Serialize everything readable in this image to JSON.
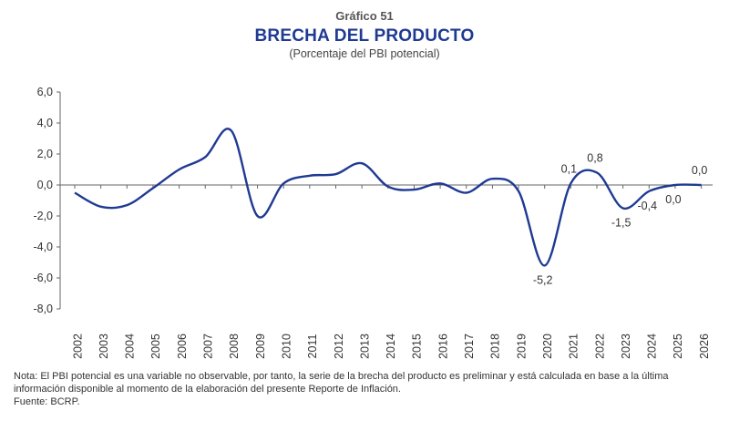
{
  "header": {
    "kicker": "Gráfico 51",
    "title": "BRECHA DEL PRODUCTO",
    "subtitle": "(Porcentaje del PBI potencial)"
  },
  "footer": {
    "note": "Nota: El PBI potencial es una variable no observable, por tanto, la serie de la brecha del producto es preliminar y está calculada en base a la última información disponible al momento de la elaboración del presente Reporte de Inflación.",
    "source": "Fuente: BCRP."
  },
  "colors": {
    "line": "#1f3a93",
    "axis": "#666666",
    "text": "#333333"
  },
  "chart_data": {
    "type": "line",
    "title": "BRECHA DEL PRODUCTO",
    "subtitle": "(Porcentaje del PBI potencial)",
    "xlabel": "",
    "ylabel": "",
    "ylim": [
      -8,
      6
    ],
    "yticks": [
      "6,0",
      "4,0",
      "2,0",
      "0,0",
      "-2,0",
      "-4,0",
      "-6,0",
      "-8,0"
    ],
    "ytick_values": [
      6,
      4,
      2,
      0,
      -2,
      -4,
      -6,
      -8
    ],
    "categories": [
      "2002",
      "2003",
      "2004",
      "2005",
      "2006",
      "2007",
      "2008",
      "2009",
      "2010",
      "2011",
      "2012",
      "2013",
      "2014",
      "2015",
      "2016",
      "2017",
      "2018",
      "2019",
      "2020",
      "2021",
      "2022",
      "2023",
      "2024",
      "2025",
      "2026"
    ],
    "series": [
      {
        "values": [
          -0.5,
          -1.4,
          -1.3,
          -0.2,
          1.0,
          1.8,
          3.5,
          -2.0,
          0.1,
          0.6,
          0.7,
          1.4,
          -0.1,
          -0.3,
          0.1,
          -0.5,
          0.4,
          -0.4,
          -5.2,
          0.1,
          0.8,
          -1.5,
          -0.4,
          0.0,
          0.0
        ]
      }
    ],
    "data_labels": [
      {
        "index": 18,
        "text": "-5,2",
        "position": "below"
      },
      {
        "index": 19,
        "text": "0,1",
        "position": "above"
      },
      {
        "index": 20,
        "text": "0,8",
        "position": "above"
      },
      {
        "index": 21,
        "text": "-1,5",
        "position": "below"
      },
      {
        "index": 22,
        "text": "-0,4",
        "position": "below"
      },
      {
        "index": 23,
        "text": "0,0",
        "position": "below"
      },
      {
        "index": 24,
        "text": "0,0",
        "position": "above"
      }
    ],
    "grid": false,
    "legend": "none"
  }
}
